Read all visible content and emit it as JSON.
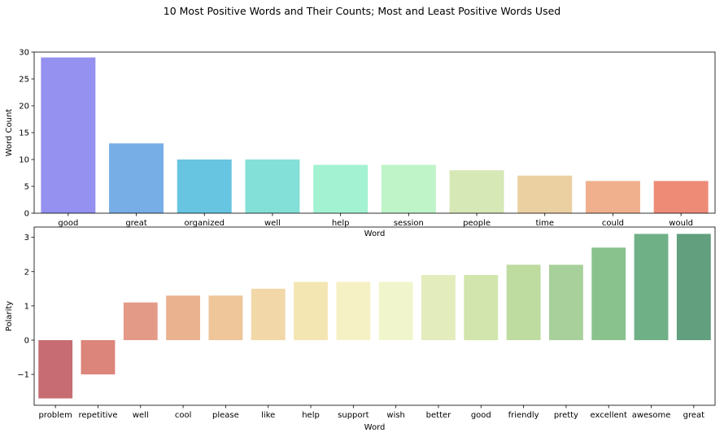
{
  "figure": {
    "title": "10 Most Positive Words and Their Counts; Most and Least Positive Words Used"
  },
  "chart_data": [
    {
      "type": "bar",
      "xlabel": "Word",
      "ylabel": "Word Count",
      "ylim": [
        0,
        30
      ],
      "yticks": [
        0,
        5,
        10,
        15,
        20,
        25,
        30
      ],
      "grid": false,
      "categories": [
        "good",
        "great",
        "organized",
        "well",
        "help",
        "session",
        "people",
        "time",
        "could",
        "would"
      ],
      "values": [
        29,
        13,
        10,
        10,
        9,
        9,
        8,
        7,
        6,
        6
      ],
      "colors": [
        "#9491f0",
        "#78aee6",
        "#67c5e1",
        "#83e0d8",
        "#a3f2d2",
        "#bff4c8",
        "#d7e8b7",
        "#ebd0a2",
        "#f0b08e",
        "#ee8b77"
      ]
    },
    {
      "type": "bar",
      "xlabel": "Word",
      "ylabel": "Polarity",
      "ylim": [
        -1.9,
        3.3
      ],
      "yticks": [
        -1,
        0,
        1,
        2,
        3
      ],
      "ytick_labels": [
        "−1",
        "0",
        "1",
        "2",
        "3"
      ],
      "grid": false,
      "categories": [
        "problem",
        "repetitive",
        "well",
        "cool",
        "please",
        "like",
        "help",
        "support",
        "wish",
        "better",
        "good",
        "friendly",
        "pretty",
        "excellent",
        "awesome",
        "great"
      ],
      "values": [
        -1.7,
        -1.0,
        1.1,
        1.3,
        1.3,
        1.5,
        1.7,
        1.7,
        1.7,
        1.9,
        1.9,
        2.2,
        2.2,
        2.7,
        3.1,
        3.1
      ],
      "colors": [
        "#c76c73",
        "#dc857a",
        "#e39b87",
        "#ebb290",
        "#efc59a",
        "#f2d7a8",
        "#f4e6b3",
        "#f6f1c5",
        "#f1f5cc",
        "#e3ecbd",
        "#d1e5ac",
        "#bedba0",
        "#a7d09a",
        "#8ac28e",
        "#70b086",
        "#619f7e"
      ]
    }
  ]
}
